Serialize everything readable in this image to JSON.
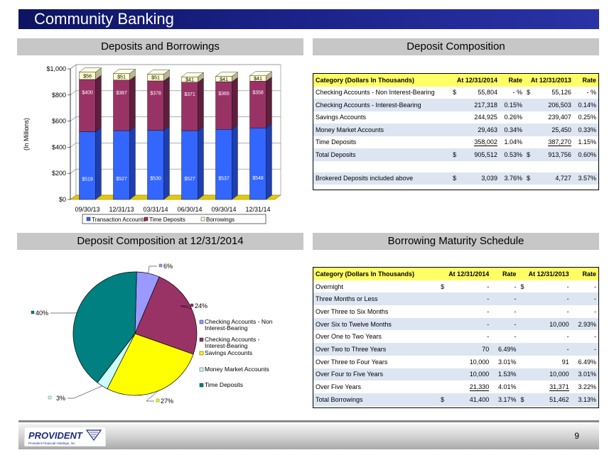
{
  "title": "Community Banking",
  "page_number": "9",
  "logo": {
    "name": "PROVIDENT",
    "tagline": "Provident Financial Holdings, Inc."
  },
  "headers": {
    "top_left": "Deposits and Borrowings",
    "top_right": "Deposit Composition",
    "bottom_left": "Deposit Composition at 12/31/2014",
    "bottom_right": "Borrowing Maturity Schedule"
  },
  "chart_data": [
    {
      "type": "bar",
      "stacked": true,
      "title": "",
      "xlabel": "",
      "ylabel": "(In Millions)",
      "ylim": [
        0,
        1000
      ],
      "yticks": [
        "$0",
        "$200",
        "$400",
        "$600",
        "$800",
        "$1,000"
      ],
      "categories": [
        "09/30/13",
        "12/31/13",
        "03/31/14",
        "06/30/14",
        "09/30/14",
        "12/31/14"
      ],
      "series": [
        {
          "name": "Transaction Accounts",
          "values": [
            519,
            527,
            530,
            527,
            537,
            548
          ],
          "labels": [
            "$519",
            "$527",
            "$530",
            "$527",
            "$537",
            "$548"
          ],
          "color": "#3366ff"
        },
        {
          "name": "Time Deposits",
          "values": [
            400,
            387,
            378,
            371,
            365,
            358
          ],
          "labels": [
            "$400",
            "$387",
            "$378",
            "$371",
            "$365",
            "$358"
          ],
          "color": "#993366"
        },
        {
          "name": "Borrowings",
          "values": [
            56,
            51,
            51,
            41,
            41,
            41
          ],
          "labels": [
            "$56",
            "$51",
            "$51",
            "$41",
            "$41",
            "$41"
          ],
          "color": "#ffffcc"
        }
      ],
      "legend_position": "bottom",
      "grid": true
    },
    {
      "type": "pie",
      "title": "",
      "slices": [
        {
          "name": "Checking Accounts - Non Interest-Bearing",
          "legend_lines": [
            "Checking Accounts - Non",
            "Interest-Bearing"
          ],
          "value": 6,
          "label": "6%",
          "color": "#9999ff"
        },
        {
          "name": "Checking Accounts - Interest-Bearing",
          "legend_lines": [
            "Checking Accounts -",
            "Interest-Bearing"
          ],
          "value": 24,
          "label": "24%",
          "color": "#993366"
        },
        {
          "name": "Savings Accounts",
          "legend_lines": [
            "Savings Accounts"
          ],
          "value": 27,
          "label": "27%",
          "color": "#ffff00"
        },
        {
          "name": "Money Market Accounts",
          "legend_lines": [
            "Money Market Accounts"
          ],
          "value": 3,
          "label": "3%",
          "color": "#ccffff"
        },
        {
          "name": "Time Deposits",
          "legend_lines": [
            "Time Deposits"
          ],
          "value": 40,
          "label": "40%",
          "color": "#008080"
        }
      ],
      "legend_position": "right"
    }
  ],
  "deposit_table": {
    "columns": [
      "Category (Dollars In Thousands)",
      "At 12/31/2014",
      "Rate",
      "At 12/31/2013",
      "Rate"
    ],
    "rows": [
      {
        "label": "Checking Accounts - Non Interest-Bearing",
        "s1": "$",
        "v1": "55,804",
        "r1": "- %",
        "s2": "$",
        "v2": "55,126",
        "r2": "- %",
        "band": false,
        "ul": false
      },
      {
        "label": "Checking Accounts - Interest-Bearing",
        "s1": "",
        "v1": "217,318",
        "r1": "0.15%",
        "s2": "",
        "v2": "206,503",
        "r2": "0.14%",
        "band": true,
        "ul": false
      },
      {
        "label": "Savings Accounts",
        "s1": "",
        "v1": "244,925",
        "r1": "0.26%",
        "s2": "",
        "v2": "239,407",
        "r2": "0.25%",
        "band": false,
        "ul": false
      },
      {
        "label": "Money Market Accounts",
        "s1": "",
        "v1": "29,463",
        "r1": "0.34%",
        "s2": "",
        "v2": "25,450",
        "r2": "0.33%",
        "band": true,
        "ul": false
      },
      {
        "label": "Time Deposits",
        "s1": "",
        "v1": "358,002",
        "r1": "1.04%",
        "s2": "",
        "v2": "387,270",
        "r2": "1.15%",
        "band": false,
        "ul": true
      },
      {
        "label": "Total Deposits",
        "s1": "$",
        "v1": "905,512",
        "r1": "0.53%",
        "s2": "$",
        "v2": "913,756",
        "r2": "0.60%",
        "band": true,
        "ul": false
      },
      {
        "label": "",
        "s1": "",
        "v1": "",
        "r1": "",
        "s2": "",
        "v2": "",
        "r2": "",
        "band": false,
        "ul": false,
        "blank": true
      },
      {
        "label": "Brokered Deposits included above",
        "s1": "$",
        "v1": "3,039",
        "r1": "3.76%",
        "s2": "$",
        "v2": "4,727",
        "r2": "3.57%",
        "band": true,
        "ul": false
      }
    ]
  },
  "borrowing_table": {
    "columns": [
      "Category (Dollars In Thousands)",
      "At 12/31/2014",
      "Rate",
      "At 12/31/2013",
      "Rate"
    ],
    "rows": [
      {
        "label": "Overnight",
        "s1": "$",
        "v1": "-",
        "r1": "-",
        "s2": "$",
        "v2": "-",
        "r2": "-",
        "band": false,
        "ul": false
      },
      {
        "label": "Three Months or Less",
        "s1": "",
        "v1": "-",
        "r1": "-",
        "s2": "",
        "v2": "-",
        "r2": "-",
        "band": true,
        "ul": false
      },
      {
        "label": "Over Three to Six Months",
        "s1": "",
        "v1": "-",
        "r1": "-",
        "s2": "",
        "v2": "-",
        "r2": "-",
        "band": false,
        "ul": false
      },
      {
        "label": "Over Six to Twelve Months",
        "s1": "",
        "v1": "-",
        "r1": "-",
        "s2": "",
        "v2": "10,000",
        "r2": "2.93%",
        "band": true,
        "ul": false
      },
      {
        "label": "Over One to Two Years",
        "s1": "",
        "v1": "-",
        "r1": "-",
        "s2": "",
        "v2": "-",
        "r2": "-",
        "band": false,
        "ul": false
      },
      {
        "label": "Over Two to Three Years",
        "s1": "",
        "v1": "70",
        "r1": "6.49%",
        "s2": "",
        "v2": "-",
        "r2": "-",
        "band": true,
        "ul": false
      },
      {
        "label": "Over Three to Four Years",
        "s1": "",
        "v1": "10,000",
        "r1": "3.01%",
        "s2": "",
        "v2": "91",
        "r2": "6.49%",
        "band": false,
        "ul": false
      },
      {
        "label": "Over Four to Five Years",
        "s1": "",
        "v1": "10,000",
        "r1": "1.53%",
        "s2": "",
        "v2": "10,000",
        "r2": "3.01%",
        "band": true,
        "ul": false
      },
      {
        "label": "Over Five Years",
        "s1": "",
        "v1": "21,330",
        "r1": "4.01%",
        "s2": "",
        "v2": "31,371",
        "r2": "3.22%",
        "band": false,
        "ul": true
      },
      {
        "label": "Total Borrowings",
        "s1": "$",
        "v1": "41,400",
        "r1": "3.17%",
        "s2": "$",
        "v2": "51,462",
        "r2": "3.13%",
        "band": true,
        "ul": false
      }
    ]
  }
}
